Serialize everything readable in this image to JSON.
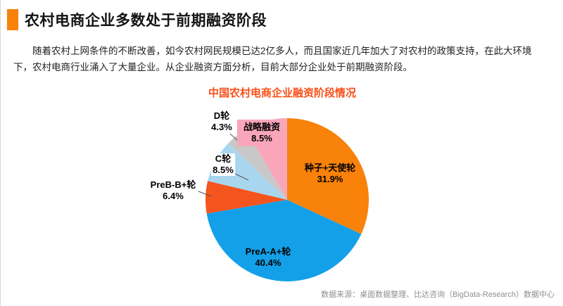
{
  "page": {
    "accent_color": "#F8820A",
    "title": "农村电商企业多数处于前期融资阶段",
    "paragraph": "随着农村上网条件的不断改善，如今农村网民规模已达2亿多人，而且国家近几年加大了对农村的政策支持，在此大环境下，农村电商行业涌入了大量企业。从企业融资方面分析，目前大部分企业处于前期融资阶段。",
    "source_note": "数据来源：桌面数据整理、比达咨询（BigData-Research）数据中心"
  },
  "chart_data": {
    "type": "pie",
    "title": "中国农村电商企业融资阶段情况",
    "title_color": "#FA4E16",
    "start_angle_deg": 0,
    "direction": "clockwise",
    "value_suffix": "%",
    "legend_position": "none",
    "slices": [
      {
        "label": "种子+天使轮",
        "value": 31.9,
        "color": "#F8820A"
      },
      {
        "label": "PreA-A+轮",
        "value": 40.4,
        "color": "#14A0E8"
      },
      {
        "label": "PreB-B+轮",
        "value": 6.4,
        "color": "#F4541D"
      },
      {
        "label": "C轮",
        "value": 8.5,
        "color": "#A8D6EF"
      },
      {
        "label": "D轮",
        "value": 4.3,
        "color": "#C8C8C8"
      },
      {
        "label": "战略融资",
        "value": 8.5,
        "color": "#F9A6BB"
      }
    ]
  }
}
